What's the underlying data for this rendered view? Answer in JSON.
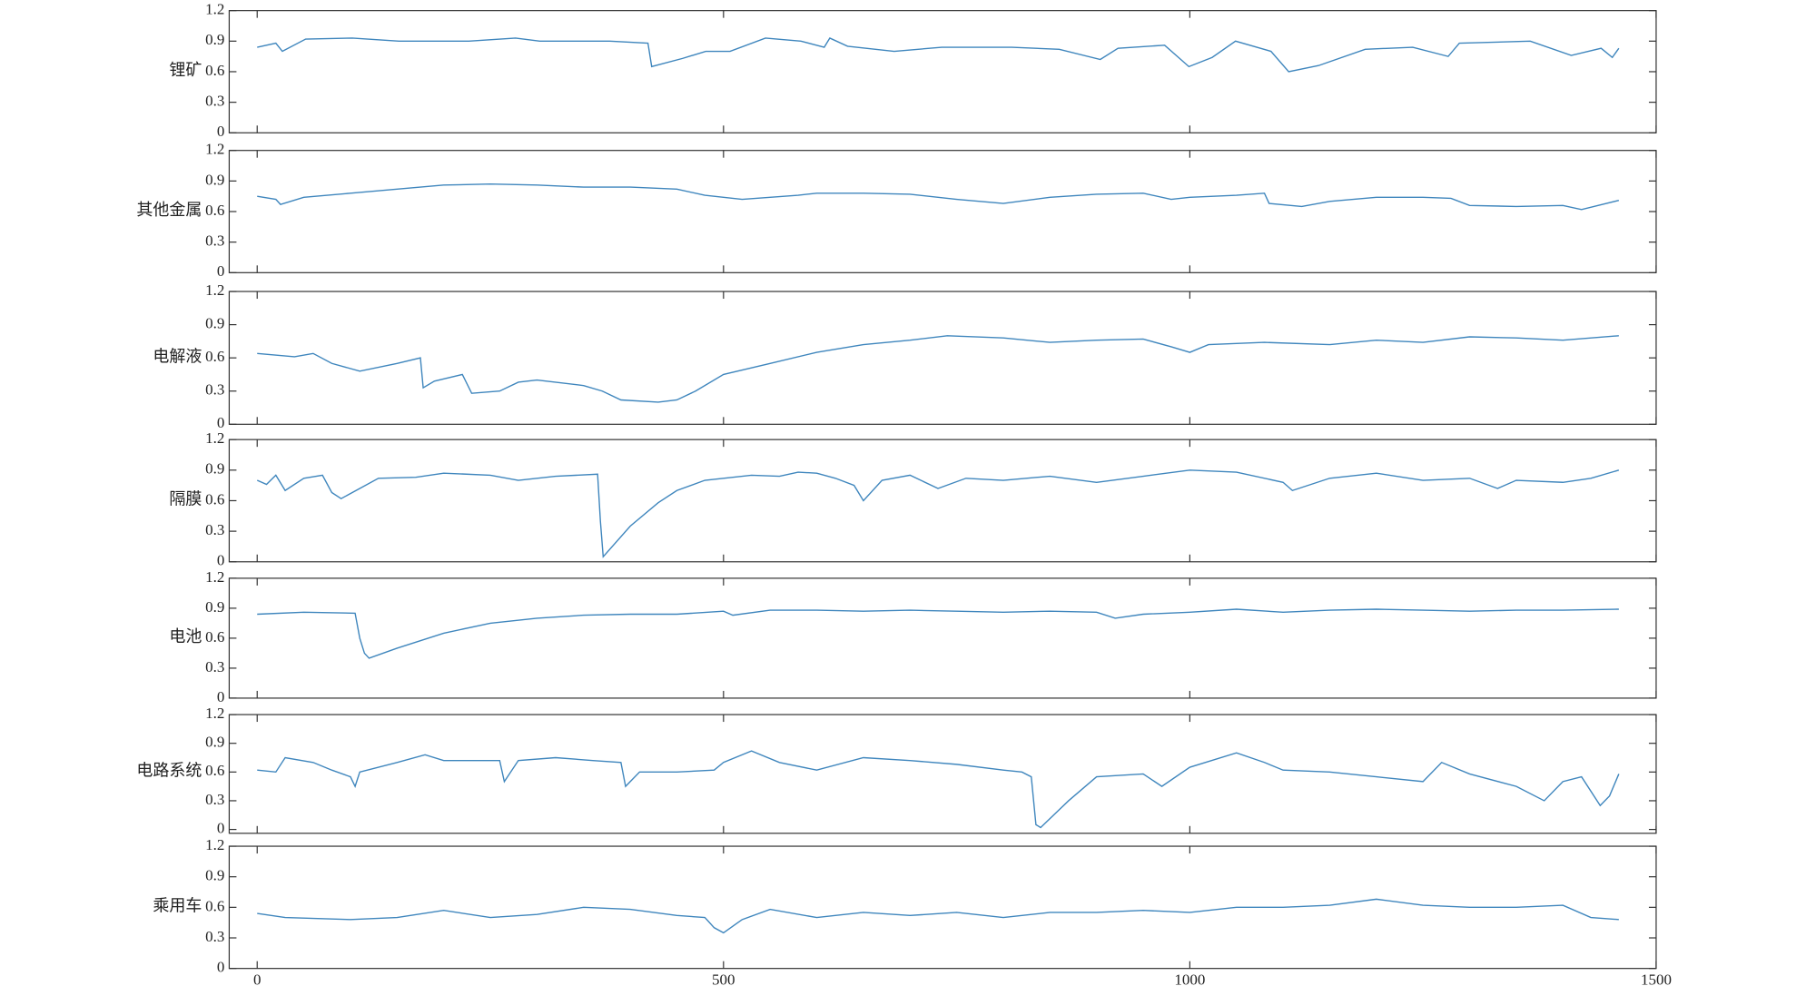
{
  "chart_data": [
    {
      "type": "line",
      "ylabel": "锂矿",
      "color": "#3f86bd",
      "xlim": [
        -30,
        1500
      ],
      "ylim": [
        0,
        1.2
      ],
      "yticks": [
        0,
        0.3,
        0.6,
        0.9,
        1.2
      ],
      "x": [
        0,
        20,
        27,
        52,
        102,
        152,
        227,
        277,
        303,
        378,
        419,
        423,
        456,
        481,
        507,
        545,
        583,
        608,
        614,
        633,
        683,
        734,
        809,
        860,
        904,
        923,
        973,
        999,
        1024,
        1049,
        1087,
        1106,
        1138,
        1188,
        1239,
        1277,
        1289,
        1365,
        1409,
        1441,
        1453,
        1460
      ],
      "values": [
        0.84,
        0.88,
        0.8,
        0.92,
        0.93,
        0.9,
        0.9,
        0.93,
        0.9,
        0.9,
        0.88,
        0.65,
        0.73,
        0.8,
        0.8,
        0.93,
        0.9,
        0.84,
        0.93,
        0.85,
        0.8,
        0.84,
        0.84,
        0.82,
        0.72,
        0.83,
        0.86,
        0.65,
        0.74,
        0.9,
        0.8,
        0.6,
        0.66,
        0.82,
        0.84,
        0.75,
        0.88,
        0.9,
        0.76,
        0.83,
        0.74,
        0.83
      ]
    },
    {
      "type": "line",
      "ylabel": "其他金属",
      "color": "#3f86bd",
      "xlim": [
        -30,
        1500
      ],
      "ylim": [
        0,
        1.2
      ],
      "yticks": [
        0,
        0.3,
        0.6,
        0.9,
        1.2
      ],
      "x": [
        0,
        20,
        25,
        50,
        100,
        150,
        200,
        250,
        300,
        350,
        400,
        450,
        480,
        520,
        580,
        600,
        650,
        700,
        750,
        800,
        850,
        900,
        950,
        980,
        1000,
        1050,
        1080,
        1085,
        1120,
        1150,
        1200,
        1250,
        1280,
        1300,
        1350,
        1400,
        1420,
        1460
      ],
      "values": [
        0.75,
        0.72,
        0.67,
        0.74,
        0.78,
        0.82,
        0.86,
        0.87,
        0.86,
        0.84,
        0.84,
        0.82,
        0.76,
        0.72,
        0.76,
        0.78,
        0.78,
        0.77,
        0.72,
        0.68,
        0.74,
        0.77,
        0.78,
        0.72,
        0.74,
        0.76,
        0.78,
        0.68,
        0.65,
        0.7,
        0.74,
        0.74,
        0.73,
        0.66,
        0.65,
        0.66,
        0.62,
        0.71
      ]
    },
    {
      "type": "line",
      "ylabel": "电解液",
      "color": "#3f86bd",
      "xlim": [
        -30,
        1500
      ],
      "ylim": [
        0,
        1.2
      ],
      "yticks": [
        0,
        0.3,
        0.6,
        0.9,
        1.2
      ],
      "x": [
        0,
        40,
        60,
        80,
        110,
        150,
        175,
        178,
        190,
        220,
        230,
        260,
        280,
        300,
        350,
        370,
        390,
        430,
        450,
        470,
        500,
        550,
        600,
        650,
        700,
        740,
        800,
        850,
        900,
        950,
        980,
        1000,
        1020,
        1080,
        1150,
        1200,
        1250,
        1300,
        1350,
        1400,
        1460
      ],
      "values": [
        0.64,
        0.61,
        0.64,
        0.55,
        0.48,
        0.55,
        0.6,
        0.33,
        0.39,
        0.45,
        0.28,
        0.3,
        0.38,
        0.4,
        0.35,
        0.3,
        0.22,
        0.2,
        0.22,
        0.3,
        0.45,
        0.55,
        0.65,
        0.72,
        0.76,
        0.8,
        0.78,
        0.74,
        0.76,
        0.77,
        0.7,
        0.65,
        0.72,
        0.74,
        0.72,
        0.76,
        0.74,
        0.79,
        0.78,
        0.76,
        0.8
      ]
    },
    {
      "type": "line",
      "ylabel": "隔膜",
      "color": "#3f86bd",
      "xlim": [
        -30,
        1500
      ],
      "ylim": [
        0,
        1.2
      ],
      "yticks": [
        0,
        0.3,
        0.6,
        0.9,
        1.2
      ],
      "x": [
        0,
        10,
        20,
        30,
        50,
        70,
        80,
        90,
        110,
        130,
        170,
        200,
        250,
        280,
        320,
        365,
        368,
        371,
        400,
        430,
        450,
        480,
        530,
        560,
        580,
        600,
        620,
        640,
        650,
        670,
        700,
        730,
        760,
        800,
        850,
        900,
        950,
        1000,
        1050,
        1100,
        1110,
        1150,
        1200,
        1250,
        1300,
        1330,
        1350,
        1400,
        1430,
        1460
      ],
      "values": [
        0.8,
        0.76,
        0.85,
        0.7,
        0.82,
        0.85,
        0.68,
        0.62,
        0.72,
        0.82,
        0.83,
        0.87,
        0.85,
        0.8,
        0.84,
        0.86,
        0.4,
        0.05,
        0.35,
        0.58,
        0.7,
        0.8,
        0.85,
        0.84,
        0.88,
        0.87,
        0.82,
        0.75,
        0.6,
        0.8,
        0.85,
        0.72,
        0.82,
        0.8,
        0.84,
        0.78,
        0.84,
        0.9,
        0.88,
        0.78,
        0.7,
        0.82,
        0.87,
        0.8,
        0.82,
        0.72,
        0.8,
        0.78,
        0.82,
        0.9
      ]
    },
    {
      "type": "line",
      "ylabel": "电池",
      "color": "#3f86bd",
      "xlim": [
        -30,
        1500
      ],
      "ylim": [
        0,
        1.2
      ],
      "yticks": [
        0,
        0.3,
        0.6,
        0.9,
        1.2
      ],
      "x": [
        0,
        50,
        105,
        110,
        115,
        120,
        150,
        200,
        250,
        300,
        350,
        400,
        450,
        500,
        510,
        550,
        600,
        650,
        700,
        750,
        800,
        850,
        900,
        920,
        950,
        1000,
        1050,
        1100,
        1150,
        1200,
        1250,
        1300,
        1350,
        1400,
        1460
      ],
      "values": [
        0.84,
        0.86,
        0.85,
        0.6,
        0.45,
        0.4,
        0.5,
        0.65,
        0.75,
        0.8,
        0.83,
        0.84,
        0.84,
        0.87,
        0.83,
        0.88,
        0.88,
        0.87,
        0.88,
        0.87,
        0.86,
        0.87,
        0.86,
        0.8,
        0.84,
        0.86,
        0.89,
        0.86,
        0.88,
        0.89,
        0.88,
        0.87,
        0.88,
        0.88,
        0.89
      ]
    },
    {
      "type": "line",
      "ylabel": "电路系统",
      "color": "#3f86bd",
      "xlim": [
        -30,
        1500
      ],
      "ylim": [
        -0.04,
        1.2
      ],
      "yticks": [
        0,
        0.3,
        0.6,
        0.9,
        1.2
      ],
      "x": [
        0,
        20,
        30,
        60,
        80,
        100,
        105,
        110,
        150,
        180,
        200,
        260,
        265,
        280,
        320,
        360,
        390,
        395,
        410,
        450,
        490,
        500,
        530,
        560,
        600,
        650,
        700,
        750,
        800,
        820,
        830,
        835,
        840,
        870,
        900,
        950,
        970,
        1000,
        1050,
        1080,
        1100,
        1150,
        1200,
        1250,
        1270,
        1300,
        1350,
        1380,
        1400,
        1420,
        1440,
        1450,
        1460
      ],
      "values": [
        0.62,
        0.6,
        0.75,
        0.7,
        0.62,
        0.55,
        0.45,
        0.6,
        0.7,
        0.78,
        0.72,
        0.72,
        0.5,
        0.72,
        0.75,
        0.72,
        0.7,
        0.45,
        0.6,
        0.6,
        0.62,
        0.7,
        0.82,
        0.7,
        0.62,
        0.75,
        0.72,
        0.68,
        0.62,
        0.6,
        0.55,
        0.05,
        0.02,
        0.3,
        0.55,
        0.58,
        0.45,
        0.65,
        0.8,
        0.7,
        0.62,
        0.6,
        0.55,
        0.5,
        0.7,
        0.58,
        0.45,
        0.3,
        0.5,
        0.55,
        0.25,
        0.35,
        0.58
      ]
    },
    {
      "type": "line",
      "ylabel": "乘用车",
      "color": "#3f86bd",
      "xlim": [
        -30,
        1500
      ],
      "ylim": [
        0,
        1.2
      ],
      "yticks": [
        0,
        0.3,
        0.6,
        0.9,
        1.2
      ],
      "xticks": [
        0,
        500,
        1000,
        1500
      ],
      "x": [
        0,
        30,
        100,
        150,
        200,
        250,
        300,
        350,
        400,
        450,
        480,
        490,
        500,
        520,
        550,
        600,
        650,
        700,
        750,
        800,
        850,
        900,
        950,
        1000,
        1050,
        1100,
        1150,
        1200,
        1250,
        1300,
        1350,
        1400,
        1430,
        1460
      ],
      "values": [
        0.54,
        0.5,
        0.48,
        0.5,
        0.57,
        0.5,
        0.53,
        0.6,
        0.58,
        0.52,
        0.5,
        0.4,
        0.35,
        0.48,
        0.58,
        0.5,
        0.55,
        0.52,
        0.55,
        0.5,
        0.55,
        0.55,
        0.57,
        0.55,
        0.6,
        0.6,
        0.62,
        0.68,
        0.62,
        0.6,
        0.6,
        0.62,
        0.5,
        0.48
      ]
    }
  ]
}
